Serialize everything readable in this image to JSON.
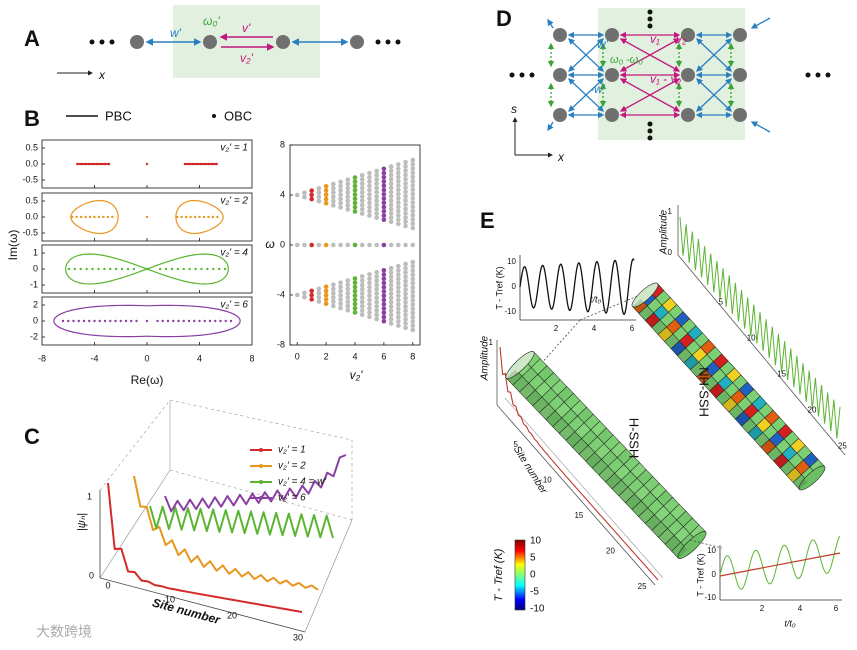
{
  "A": {
    "label": "A",
    "w": "w'",
    "omega": "ω₀'",
    "v": "v'",
    "v2": "v₂'",
    "x": "x"
  },
  "B": {
    "label": "B",
    "legend": [
      "PBC",
      "OBC"
    ],
    "subplots": [
      {
        "label": "v₂' = 1",
        "yticks": [
          "0.5",
          "0.0",
          "-0.5"
        ]
      },
      {
        "label": "v₂' = 2",
        "yticks": [
          "0.5",
          "0.0",
          "-0.5"
        ]
      },
      {
        "label": "v₂' = 4",
        "yticks": [
          "1",
          "0",
          "-1"
        ]
      },
      {
        "label": "v₂' = 6",
        "yticks": [
          "2",
          "0",
          "-2"
        ]
      }
    ],
    "xticks": [
      "-8",
      "-4",
      "0",
      "4",
      "8"
    ],
    "ylabel": "Im(ω)",
    "xlabel": "Re(ω)",
    "right": {
      "ylabel": "ω",
      "yticks": [
        "8",
        "4",
        "0",
        "-4",
        "-8"
      ],
      "xticks": [
        "0",
        "2",
        "4",
        "6",
        "8"
      ],
      "xlabel": "v₂'"
    }
  },
  "C": {
    "label": "C",
    "legend": [
      "v₂' = 1",
      "v₂' = 2",
      "v₂' = 4 = w'",
      "v₂' = 6"
    ],
    "xlabel": "Site number",
    "xticks": [
      "0",
      "10",
      "20",
      "30"
    ],
    "ylabel": "|ψₙ|",
    "yticks": [
      "1",
      "0"
    ]
  },
  "D": {
    "label": "D",
    "w": "w'",
    "v1": "v₁",
    "v2": "v₂",
    "omega": "ω₀",
    "neg_omega": "-ω₀",
    "neg_w": "-w'",
    "v1_minus_v2": "v₁ - v₂",
    "s": "s",
    "x": "x"
  },
  "E": {
    "label": "E",
    "h_ssh": "H-SSH",
    "nh_ssh": "NH-SSH",
    "inset_top": {
      "ylabel": "T - Tref (K)",
      "yticks": [
        "10",
        "0",
        "-10"
      ],
      "xticks": [
        "2",
        "4",
        "6"
      ],
      "xlabel": "t/t₀"
    },
    "inset_bottom": {
      "ylabel": "T - Tref (K)",
      "yticks": [
        "10",
        "0",
        "-10"
      ],
      "xticks": [
        "2",
        "4",
        "6"
      ],
      "xlabel": "t/t₀"
    },
    "amp_right": {
      "ylabel": "Amplitude",
      "yticks": [
        "1",
        "0"
      ],
      "xticks": [
        "5",
        "10",
        "15",
        "20",
        "25"
      ]
    },
    "amp_left": {
      "ylabel": "Amplitude",
      "yticks": [
        "1"
      ],
      "xlabel": "Site number",
      "xticks": [
        "5",
        "10",
        "15",
        "20",
        "25"
      ]
    },
    "colorbar": {
      "label": "T - Tref (K)",
      "ticks": [
        "10",
        "5",
        "0",
        "-5",
        "-10"
      ]
    }
  },
  "watermark": "大数跨境"
}
